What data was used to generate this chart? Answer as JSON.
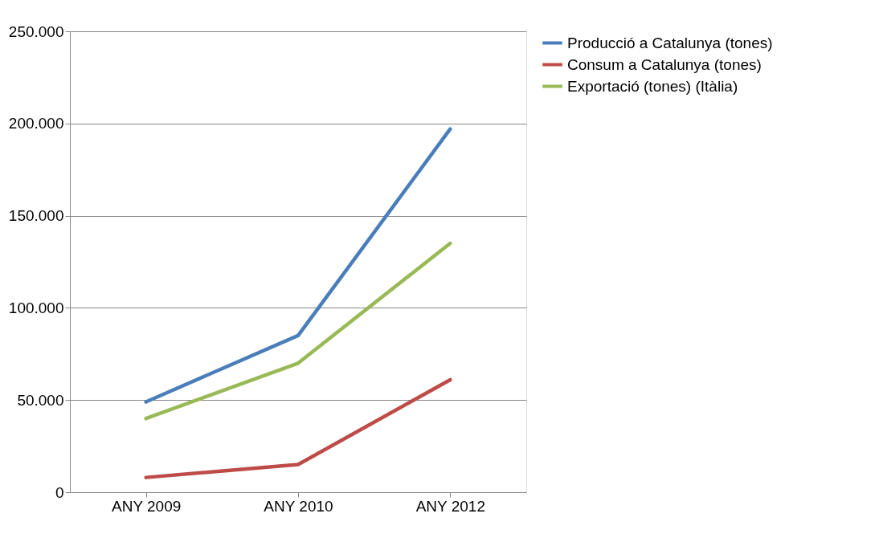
{
  "chart_data": {
    "type": "line",
    "categories": [
      "ANY 2009",
      "ANY 2010",
      "ANY 2012"
    ],
    "series": [
      {
        "name": "Producció a Catalunya (tones)",
        "color": "#4a7ebb",
        "values": [
          49000,
          85000,
          197000
        ]
      },
      {
        "name": "Consum a Catalunya (tones)",
        "color": "#be4b48",
        "values": [
          8000,
          15000,
          61000
        ]
      },
      {
        "name": "Exportació (tones) (Itàlia)",
        "color": "#98b954",
        "values": [
          40000,
          70000,
          135000
        ]
      }
    ],
    "ylim": [
      0,
      250000
    ],
    "yticks": [
      {
        "value": 0,
        "label": "0"
      },
      {
        "value": 50000,
        "label": "50.000"
      },
      {
        "value": 100000,
        "label": "100.000"
      },
      {
        "value": 150000,
        "label": "150.000"
      },
      {
        "value": 200000,
        "label": "200.000"
      },
      {
        "value": 250000,
        "label": "250.000"
      }
    ],
    "grid": "y",
    "legend": "right",
    "marker": "none",
    "line_style": "solid"
  }
}
